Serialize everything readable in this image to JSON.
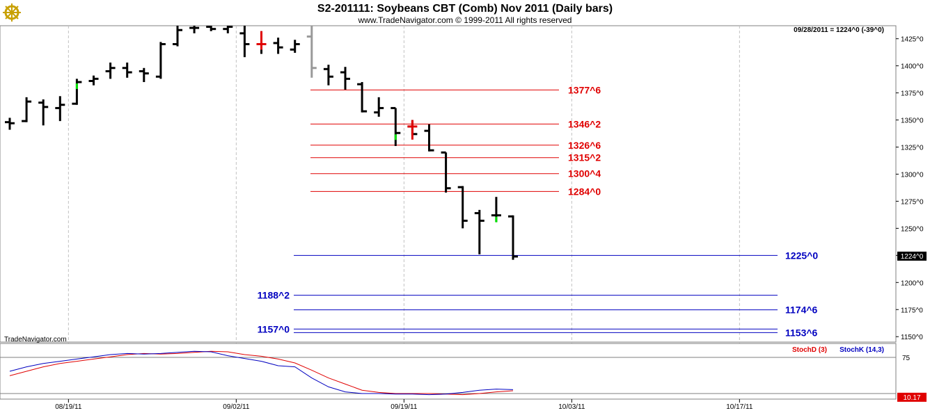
{
  "header": {
    "title": "S2-201111:  Soybeans CBT (Comb) Nov 2011  (Daily bars)",
    "copyright": "www.TradeNavigator.com © 1999-2011 All rights reserved",
    "readout": "09/28/2011 = 1224^0 (-39^0)",
    "watermark": "TradeNavigator.com",
    "logo_icon": "ship-wheel-icon"
  },
  "colors": {
    "bar": "#000000",
    "up_close": "#00e000",
    "down_close": "#e00000",
    "faded_bar": "#999999",
    "resistance": "#e00000",
    "support": "#0000c0",
    "stoch_d": "#e00000",
    "stoch_k": "#0000c0"
  },
  "chart_data": {
    "type": "ohlc",
    "ylim": [
      1145,
      1437
    ],
    "y_ticks": [
      "1425^0",
      "1400^0",
      "1375^0",
      "1350^0",
      "1325^0",
      "1300^0",
      "1275^0",
      "1250^0",
      "1225^0",
      "1200^0",
      "1175^0",
      "1150^0"
    ],
    "y_tick_values": [
      1425,
      1400,
      1375,
      1350,
      1325,
      1300,
      1275,
      1250,
      1225,
      1200,
      1175,
      1150
    ],
    "x_ticks": [
      "08/19/11",
      "09/02/11",
      "09/19/11",
      "10/03/11",
      "10/17/11"
    ],
    "x_tick_slots": [
      3.5,
      13.5,
      23.5,
      33.5,
      43.5
    ],
    "current_price_label": "1224^0",
    "current_price": 1224,
    "bars": [
      {
        "o": 1348,
        "h": 1352,
        "l": 1341,
        "c": 1347
      },
      {
        "o": 1349,
        "h": 1371,
        "l": 1348,
        "c": 1367
      },
      {
        "o": 1366,
        "h": 1369,
        "l": 1345,
        "c": 1362
      },
      {
        "o": 1361,
        "h": 1372,
        "l": 1349,
        "c": 1364
      },
      {
        "o": 1365,
        "h": 1388,
        "l": 1364,
        "c": 1385,
        "mark": "up"
      },
      {
        "o": 1386,
        "h": 1391,
        "l": 1382,
        "c": 1388
      },
      {
        "o": 1395,
        "h": 1403,
        "l": 1388,
        "c": 1398
      },
      {
        "o": 1398,
        "h": 1403,
        "l": 1389,
        "c": 1394
      },
      {
        "o": 1395,
        "h": 1398,
        "l": 1385,
        "c": 1393
      },
      {
        "o": 1390,
        "h": 1422,
        "l": 1388,
        "c": 1420
      },
      {
        "o": 1420,
        "h": 1437,
        "l": 1418,
        "c": 1433
      },
      {
        "o": 1435,
        "h": 1437,
        "l": 1430,
        "c": 1435
      },
      {
        "o": 1436,
        "h": 1437,
        "l": 1432,
        "c": 1434
      },
      {
        "o": 1434,
        "h": 1437,
        "l": 1430,
        "c": 1436
      },
      {
        "o": 1430,
        "h": 1437,
        "l": 1408,
        "c": 1420
      },
      {
        "o": 1420,
        "h": 1432,
        "l": 1411,
        "c": 1420,
        "mark": "down"
      },
      {
        "o": 1421,
        "h": 1426,
        "l": 1411,
        "c": 1417
      },
      {
        "o": 1415,
        "h": 1424,
        "l": 1412,
        "c": 1420
      },
      {
        "o": 1427,
        "h": 1437,
        "l": 1389,
        "c": 1398,
        "mark": "faded"
      },
      {
        "o": 1397,
        "h": 1401,
        "l": 1382,
        "c": 1390
      },
      {
        "o": 1394,
        "h": 1399,
        "l": 1378,
        "c": 1388
      },
      {
        "o": 1383,
        "h": 1385,
        "l": 1357,
        "c": 1358
      },
      {
        "o": 1357,
        "h": 1371,
        "l": 1353,
        "c": 1361
      },
      {
        "o": 1361,
        "h": 1361,
        "l": 1326,
        "c": 1338,
        "mark": "up"
      },
      {
        "o": 1344,
        "h": 1350,
        "l": 1336,
        "c": 1337,
        "mark": "down"
      },
      {
        "o": 1340,
        "h": 1346,
        "l": 1321,
        "c": 1322
      },
      {
        "o": 1320,
        "h": 1320,
        "l": 1283,
        "c": 1287
      },
      {
        "o": 1288,
        "h": 1289,
        "l": 1250,
        "c": 1257
      },
      {
        "o": 1264,
        "h": 1267,
        "l": 1226,
        "c": 1257
      },
      {
        "o": 1262,
        "h": 1279,
        "l": 1256,
        "c": 1262,
        "mark": "up"
      },
      {
        "o": 1261,
        "h": 1262,
        "l": 1221,
        "c": 1224
      }
    ],
    "levels": [
      {
        "label": "1377^6",
        "value": 1377.75,
        "kind": "resistance"
      },
      {
        "label": "1346^2",
        "value": 1346.25,
        "kind": "resistance"
      },
      {
        "label": "1326^6",
        "value": 1326.75,
        "kind": "resistance"
      },
      {
        "label": "1315^2",
        "value": 1315.25,
        "kind": "resistance"
      },
      {
        "label": "1300^4",
        "value": 1300.5,
        "kind": "resistance"
      },
      {
        "label": "1284^0",
        "value": 1284,
        "kind": "resistance"
      },
      {
        "label": "1225^0",
        "value": 1225,
        "kind": "support"
      },
      {
        "label": "1188^2",
        "value": 1188.25,
        "kind": "support"
      },
      {
        "label": "1174^6",
        "value": 1174.75,
        "kind": "support"
      },
      {
        "label": "1157^0",
        "value": 1157,
        "kind": "support"
      },
      {
        "label": "1153^6",
        "value": 1153.75,
        "kind": "support"
      }
    ],
    "stochastic": {
      "legend_d": "StochD (3)",
      "legend_k": "StochK (14,3)",
      "ylim": [
        0,
        100
      ],
      "y_tick": "75",
      "y_tick_value": 75,
      "current_label": "10.17",
      "current_value": 10.17,
      "d_values": [
        42,
        50,
        58,
        64,
        68,
        72,
        76,
        80,
        82,
        81,
        82,
        84,
        86,
        85,
        80,
        77,
        72,
        65,
        52,
        38,
        27,
        16,
        12,
        10,
        10,
        10,
        9,
        8,
        10,
        13,
        15
      ],
      "k_values": [
        50,
        58,
        64,
        68,
        72,
        76,
        80,
        82,
        81,
        82,
        84,
        86,
        85,
        78,
        73,
        68,
        60,
        58,
        38,
        22,
        13,
        10,
        10,
        9,
        9,
        8,
        9,
        12,
        16,
        18,
        17
      ]
    }
  }
}
